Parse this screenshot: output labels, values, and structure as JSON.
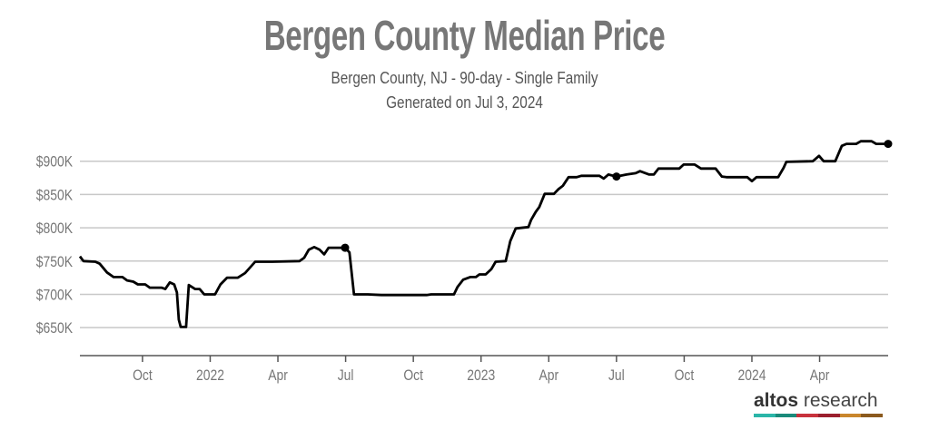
{
  "chart_data": {
    "type": "line",
    "title": "Bergen County Median Price",
    "subtitle": "Bergen County, NJ - 90-day - Single Family",
    "generated": "Generated on Jul 3, 2024",
    "xlabel": "",
    "ylabel": "",
    "x_unit": "decimal year",
    "y_unit": "thousand USD",
    "xlim": [
      2021.519,
      2024.503
    ],
    "ylim": [
      608,
      935
    ],
    "grid": true,
    "y_ticks": [
      {
        "value": 650,
        "label": "$650K"
      },
      {
        "value": 700,
        "label": "$700K"
      },
      {
        "value": 750,
        "label": "$750K"
      },
      {
        "value": 800,
        "label": "$800K"
      },
      {
        "value": 850,
        "label": "$850K"
      },
      {
        "value": 900,
        "label": "$900K"
      }
    ],
    "x_ticks": [
      {
        "value": 2021.75,
        "label": "Oct"
      },
      {
        "value": 2022.0,
        "label": "2022"
      },
      {
        "value": 2022.25,
        "label": "Apr"
      },
      {
        "value": 2022.5,
        "label": "Jul"
      },
      {
        "value": 2022.75,
        "label": "Oct"
      },
      {
        "value": 2023.0,
        "label": "2023"
      },
      {
        "value": 2023.25,
        "label": "Apr"
      },
      {
        "value": 2023.5,
        "label": "Jul"
      },
      {
        "value": 2023.75,
        "label": "Oct"
      },
      {
        "value": 2024.0,
        "label": "2024"
      },
      {
        "value": 2024.25,
        "label": "Apr"
      }
    ],
    "series": [
      {
        "name": "Median Price",
        "color": "#000000",
        "points": [
          [
            2021.519,
            757
          ],
          [
            2021.532,
            750
          ],
          [
            2021.576,
            749
          ],
          [
            2021.592,
            746
          ],
          [
            2021.619,
            733
          ],
          [
            2021.643,
            726
          ],
          [
            2021.676,
            726
          ],
          [
            2021.693,
            721
          ],
          [
            2021.716,
            719
          ],
          [
            2021.733,
            715
          ],
          [
            2021.76,
            715
          ],
          [
            2021.777,
            710
          ],
          [
            2021.82,
            710
          ],
          [
            2021.834,
            708
          ],
          [
            2021.851,
            718
          ],
          [
            2021.867,
            715
          ],
          [
            2021.877,
            703
          ],
          [
            2021.884,
            662
          ],
          [
            2021.891,
            651
          ],
          [
            2021.911,
            651
          ],
          [
            2021.921,
            714
          ],
          [
            2021.944,
            708
          ],
          [
            2021.961,
            708
          ],
          [
            2021.978,
            700
          ],
          [
            2022.018,
            700
          ],
          [
            2022.038,
            715
          ],
          [
            2022.062,
            725
          ],
          [
            2022.102,
            725
          ],
          [
            2022.129,
            732
          ],
          [
            2022.166,
            749
          ],
          [
            2022.229,
            749
          ],
          [
            2022.33,
            750
          ],
          [
            2022.347,
            755
          ],
          [
            2022.364,
            767
          ],
          [
            2022.384,
            771
          ],
          [
            2022.404,
            767
          ],
          [
            2022.421,
            760
          ],
          [
            2022.437,
            770
          ],
          [
            2022.498,
            770
          ],
          [
            2022.514,
            763
          ],
          [
            2022.531,
            700
          ],
          [
            2022.582,
            700
          ],
          [
            2022.632,
            699
          ],
          [
            2022.799,
            699
          ],
          [
            2022.816,
            700
          ],
          [
            2022.9,
            700
          ],
          [
            2022.913,
            711
          ],
          [
            2022.934,
            722
          ],
          [
            2022.96,
            726
          ],
          [
            2022.981,
            726
          ],
          [
            2022.994,
            730
          ],
          [
            2023.017,
            730
          ],
          [
            2023.038,
            738
          ],
          [
            2023.054,
            749
          ],
          [
            2023.091,
            750
          ],
          [
            2023.108,
            780
          ],
          [
            2023.128,
            799
          ],
          [
            2023.175,
            801
          ],
          [
            2023.185,
            812
          ],
          [
            2023.202,
            824
          ],
          [
            2023.215,
            831
          ],
          [
            2023.235,
            851
          ],
          [
            2023.269,
            851
          ],
          [
            2023.286,
            858
          ],
          [
            2023.302,
            863
          ],
          [
            2023.323,
            876
          ],
          [
            2023.353,
            876
          ],
          [
            2023.37,
            878
          ],
          [
            2023.437,
            878
          ],
          [
            2023.453,
            874
          ],
          [
            2023.47,
            880
          ],
          [
            2023.5,
            877
          ],
          [
            2023.537,
            880
          ],
          [
            2023.571,
            882
          ],
          [
            2023.587,
            885
          ],
          [
            2023.621,
            880
          ],
          [
            2023.638,
            880
          ],
          [
            2023.655,
            889
          ],
          [
            2023.732,
            889
          ],
          [
            2023.748,
            895
          ],
          [
            2023.789,
            895
          ],
          [
            2023.812,
            889
          ],
          [
            2023.866,
            889
          ],
          [
            2023.889,
            877
          ],
          [
            2023.906,
            876
          ],
          [
            2023.983,
            876
          ],
          [
            2024.0,
            870
          ],
          [
            2024.017,
            876
          ],
          [
            2024.097,
            876
          ],
          [
            2024.117,
            890
          ],
          [
            2024.127,
            899
          ],
          [
            2024.225,
            900
          ],
          [
            2024.248,
            908
          ],
          [
            2024.265,
            900
          ],
          [
            2024.308,
            900
          ],
          [
            2024.332,
            923
          ],
          [
            2024.349,
            926
          ],
          [
            2024.385,
            926
          ],
          [
            2024.402,
            930
          ],
          [
            2024.442,
            930
          ],
          [
            2024.459,
            926
          ],
          [
            2024.503,
            926
          ]
        ],
        "markers": [
          [
            2022.498,
            770
          ],
          [
            2023.5,
            877
          ],
          [
            2024.503,
            926
          ]
        ]
      }
    ]
  },
  "branding": {
    "logo_bold": "altos",
    "logo_light": "research",
    "logo_colors": [
      "#2bb5a8",
      "#1a8a7a",
      "#c8323c",
      "#9b1f2e",
      "#c9862c",
      "#8b5a1e"
    ]
  },
  "colors": {
    "grid": "#c8c8c8",
    "axis": "#555555",
    "tick_text": "#777777"
  }
}
